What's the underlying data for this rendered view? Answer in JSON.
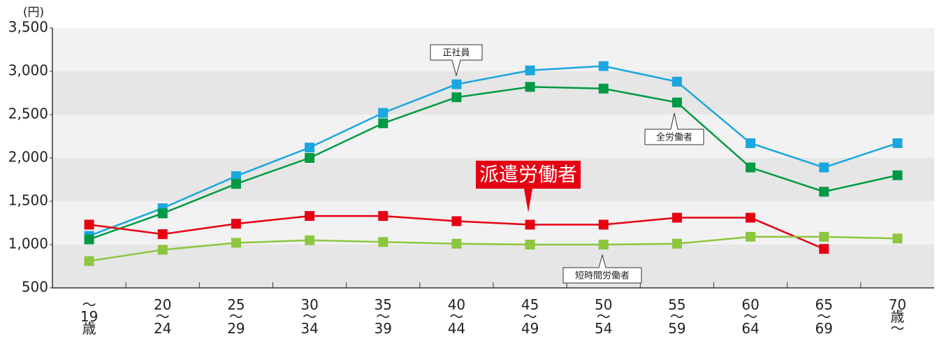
{
  "chart_data": {
    "type": "line",
    "y_unit": "(円)",
    "categories": [
      "〜19歳",
      "20〜24",
      "25〜29",
      "30〜34",
      "35〜39",
      "40〜44",
      "45〜49",
      "50〜54",
      "55〜59",
      "60〜64",
      "65〜69",
      "70歳〜"
    ],
    "ylim": [
      500,
      3500
    ],
    "yticks": [
      {
        "value": 500,
        "label": "500"
      },
      {
        "value": 1000,
        "label": "1,000"
      },
      {
        "value": 1500,
        "label": "1,500"
      },
      {
        "value": 2000,
        "label": "2,000"
      },
      {
        "value": 2500,
        "label": "2,500"
      },
      {
        "value": 3000,
        "label": "3,000"
      },
      {
        "value": 3500,
        "label": "3,500"
      }
    ],
    "grid": "bands",
    "series": [
      {
        "name": "正社員",
        "color": "#1ba6df",
        "values": [
          1100,
          1420,
          1790,
          2120,
          2520,
          2850,
          3010,
          3060,
          2880,
          2170,
          1890,
          2170
        ]
      },
      {
        "name": "全労働者",
        "color": "#009a44",
        "values": [
          1060,
          1360,
          1700,
          2000,
          2400,
          2700,
          2820,
          2800,
          2640,
          1890,
          1610,
          1800
        ]
      },
      {
        "name": "派遣労働者",
        "color": "#e60012",
        "values": [
          1230,
          1120,
          1240,
          1330,
          1330,
          1270,
          1230,
          1230,
          1310,
          1310,
          950,
          null
        ]
      },
      {
        "name": "短時間労働者",
        "color": "#8cc63f",
        "values": [
          810,
          940,
          1020,
          1050,
          1030,
          1010,
          1000,
          1000,
          1010,
          1090,
          1090,
          1070
        ]
      }
    ]
  }
}
